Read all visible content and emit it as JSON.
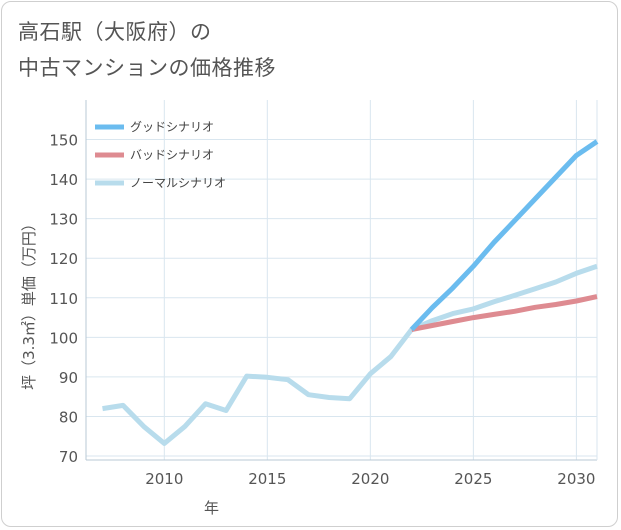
{
  "title_lines": [
    "高石駅（大阪府）の",
    "中古マンションの価格推移"
  ],
  "chart_data": {
    "type": "line",
    "title": "高石駅（大阪府）の中古マンションの価格推移",
    "xlabel": "年",
    "ylabel": "坪（3.3㎡）単価（万円）",
    "xlim": [
      2006.2,
      2031
    ],
    "ylim": [
      69,
      160
    ],
    "xticks": [
      2010,
      2015,
      2020,
      2025,
      2030
    ],
    "yticks": [
      70,
      80,
      90,
      100,
      110,
      120,
      130,
      140,
      150
    ],
    "legend_position": "top-left",
    "series": [
      {
        "name": "グッドシナリオ",
        "color": "#6bbcef",
        "x": [
          2022,
          2023,
          2024,
          2025,
          2026,
          2027,
          2028,
          2029,
          2030,
          2031
        ],
        "y": [
          102,
          107.5,
          112.5,
          118,
          124,
          129.5,
          135,
          140.5,
          146,
          149.5
        ]
      },
      {
        "name": "バッドシナリオ",
        "color": "#de8b91",
        "x": [
          2022,
          2023,
          2024,
          2025,
          2026,
          2027,
          2028,
          2029,
          2030,
          2031
        ],
        "y": [
          102,
          103,
          104,
          105,
          105.8,
          106.6,
          107.6,
          108.3,
          109.2,
          110.3
        ]
      },
      {
        "name": "ノーマルシナリオ",
        "color": "#b8dcec",
        "x": [
          2007,
          2008,
          2009,
          2010,
          2011,
          2012,
          2013,
          2014,
          2015,
          2016,
          2017,
          2018,
          2019,
          2020,
          2021,
          2022,
          2023,
          2024,
          2025,
          2026,
          2027,
          2028,
          2029,
          2030,
          2031
        ],
        "y": [
          82,
          82.8,
          77.5,
          73.2,
          77.5,
          83.2,
          81.5,
          90.2,
          89.9,
          89.3,
          85.5,
          84.8,
          84.5,
          90.8,
          95.2,
          102,
          104.2,
          106,
          107.2,
          109,
          110.6,
          112.3,
          114,
          116.2,
          118
        ]
      }
    ]
  }
}
